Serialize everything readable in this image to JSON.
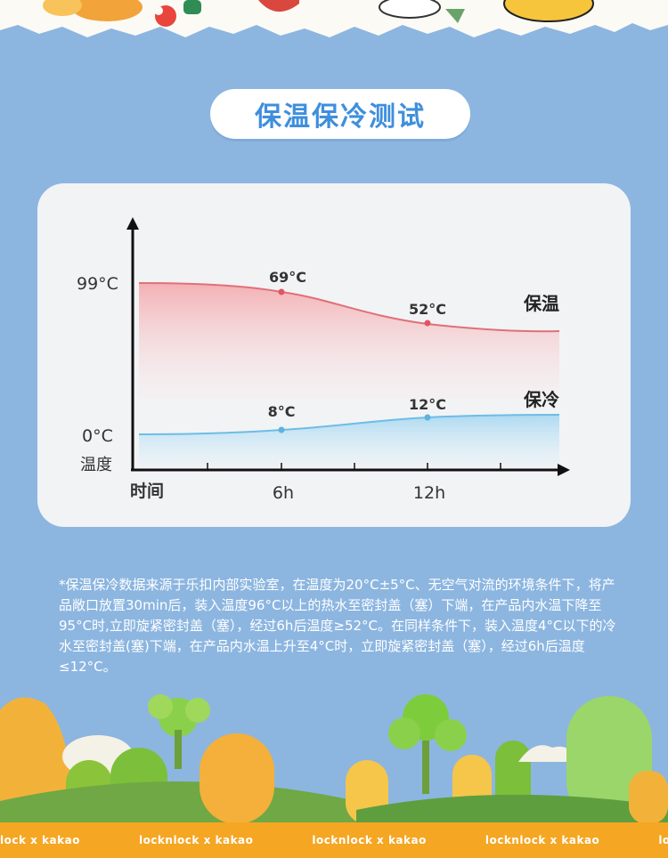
{
  "header": {
    "title": "保温保冷测试"
  },
  "chart_data": {
    "type": "line",
    "x_ticks": [
      "时间",
      "6h",
      "12h"
    ],
    "y_ticks": [
      "99°C",
      "0°C",
      "温度"
    ],
    "series": [
      {
        "name": "保温",
        "color": "#e06b72",
        "fill": "#f6c3c3",
        "points": [
          {
            "x": 6,
            "label": "69°C"
          },
          {
            "x": 12,
            "label": "52°C"
          }
        ]
      },
      {
        "name": "保冷",
        "color": "#6cbde6",
        "fill": "#c8e6f5",
        "points": [
          {
            "x": 6,
            "label": "8°C"
          },
          {
            "x": 12,
            "label": "12°C"
          }
        ]
      }
    ]
  },
  "note": "*保温保冷数据来源于乐扣内部实验室，在温度为20°C±5°C、无空气对流的环境条件下，将产品敞口放置30min后，装入温度96°C以上的热水至密封盖（塞）下端，在产品内水温下降至95°C时,立即旋紧密封盖（塞），经过6h后温度≥52°C。在同样条件下，装入温度4°C以下的冷水至密封盖(塞)下端，在产品内水温上升至4°C时，立即旋紧密封盖（塞），经过6h后温度≤12°C。",
  "brand": {
    "strip": [
      "lock x kakao",
      "locknlock x kakao",
      "locknlock x kakao",
      "locknlock x kakao",
      "locknlock x kakao",
      "locknlock"
    ]
  }
}
